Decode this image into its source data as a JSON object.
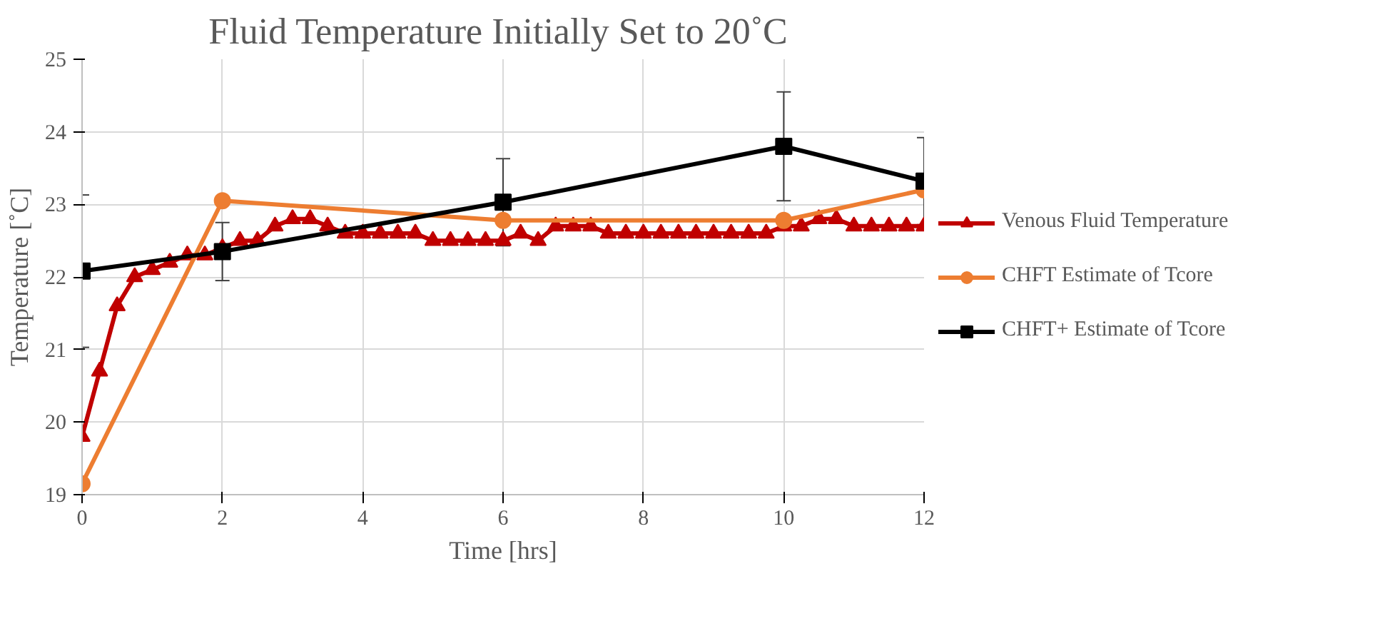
{
  "chart_data": {
    "type": "line",
    "title": "Fluid Temperature  Initially Set to 20˚C",
    "xlabel": "Time [hrs]",
    "ylabel": "Temperature [˚C]",
    "xlim": [
      0,
      12
    ],
    "xticks": [
      0,
      2,
      4,
      6,
      8,
      10,
      12
    ],
    "ylim": [
      19,
      25
    ],
    "yticks": [
      19,
      20,
      21,
      22,
      23,
      24,
      25
    ],
    "grid": true,
    "legend": "right",
    "line_style": "solid",
    "series": [
      {
        "name": "Venous Fluid Temperature",
        "color": "#c00000",
        "marker": "triangle",
        "x": [
          0,
          0.25,
          0.5,
          0.75,
          1,
          1.25,
          1.5,
          1.75,
          2,
          2.25,
          2.5,
          2.75,
          3,
          3.25,
          3.5,
          3.75,
          4,
          4.25,
          4.5,
          4.75,
          5,
          5.25,
          5.5,
          5.75,
          6,
          6.25,
          6.5,
          6.75,
          7,
          7.25,
          7.5,
          7.75,
          8,
          8.25,
          8.5,
          8.75,
          9,
          9.25,
          9.5,
          9.75,
          10,
          10.25,
          10.5,
          10.75,
          11,
          11.25,
          11.5,
          11.75,
          12
        ],
        "values": [
          19.8,
          20.7,
          21.6,
          22.0,
          22.1,
          22.2,
          22.3,
          22.3,
          22.4,
          22.5,
          22.5,
          22.7,
          22.8,
          22.8,
          22.7,
          22.6,
          22.6,
          22.6,
          22.6,
          22.6,
          22.5,
          22.5,
          22.5,
          22.5,
          22.5,
          22.6,
          22.5,
          22.7,
          22.7,
          22.7,
          22.6,
          22.6,
          22.6,
          22.6,
          22.6,
          22.6,
          22.6,
          22.6,
          22.6,
          22.6,
          22.7,
          22.7,
          22.8,
          22.8,
          22.7,
          22.7,
          22.7,
          22.7,
          22.7
        ]
      },
      {
        "name": "CHFT Estimate of Tcore",
        "color": "#ed7d31",
        "marker": "circle",
        "x": [
          0,
          2,
          6,
          10,
          12
        ],
        "values": [
          19.15,
          23.05,
          22.78,
          22.78,
          23.2
        ]
      },
      {
        "name": "CHFT+ Estimate of Tcore",
        "color": "#000000",
        "marker": "square",
        "x": [
          0,
          2,
          6,
          10,
          12
        ],
        "values": [
          22.08,
          22.35,
          23.03,
          23.8,
          23.32
        ],
        "errors": [
          1.05,
          0.4,
          0.6,
          0.75,
          0.6
        ]
      }
    ]
  }
}
